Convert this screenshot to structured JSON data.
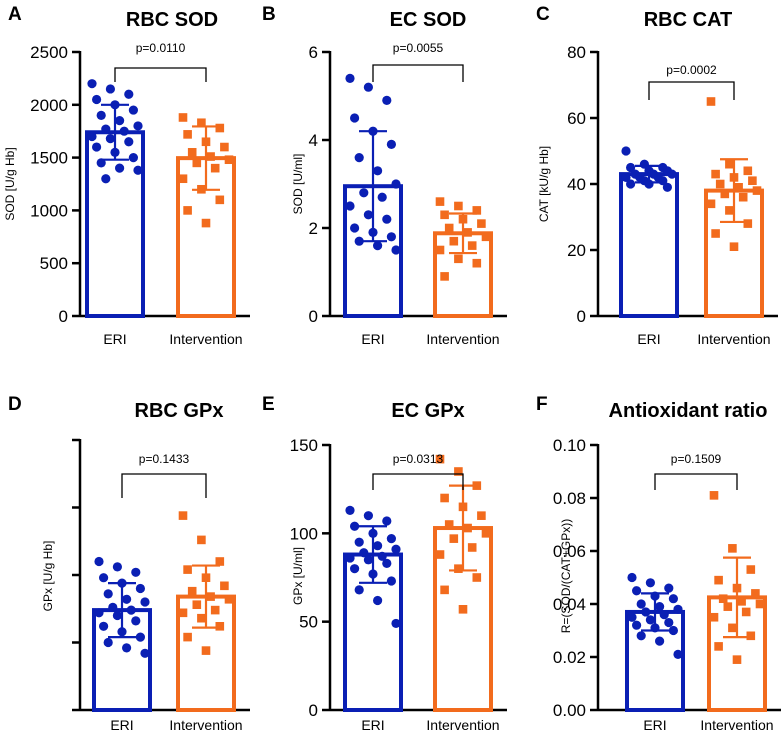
{
  "colors": {
    "eri": "#0a1fb4",
    "intervention": "#f26b1d",
    "axis": "#000000"
  },
  "chart_data": [
    {
      "panel": "A",
      "title": "RBC SOD",
      "type": "bar",
      "ylabel": "SOD [U/g Hb]",
      "ylim": [
        0,
        2500
      ],
      "yticks": [
        0,
        500,
        1000,
        1500,
        2000,
        2500
      ],
      "ytick_labels": true,
      "categories": [
        "ERI",
        "Intervention"
      ],
      "means": [
        1740,
        1495
      ],
      "sd": [
        260,
        300
      ],
      "points": [
        [
          2200,
          2150,
          2100,
          2050,
          2000,
          1950,
          1900,
          1850,
          1800,
          1770,
          1750,
          1700,
          1680,
          1650,
          1600,
          1550,
          1500,
          1450,
          1400,
          1380,
          1300
        ],
        [
          1880,
          1830,
          1780,
          1720,
          1650,
          1600,
          1550,
          1510,
          1480,
          1450,
          1400,
          1300,
          1200,
          1100,
          1000,
          880
        ]
      ],
      "p_value": "p=0.0110"
    },
    {
      "panel": "B",
      "title": "EC SOD",
      "type": "bar",
      "ylabel": "SOD [U/ml]",
      "ylim": [
        0,
        6
      ],
      "yticks": [
        0,
        2,
        4,
        6
      ],
      "ytick_labels": true,
      "categories": [
        "ERI",
        "Intervention"
      ],
      "means": [
        2.95,
        1.88
      ],
      "sd": [
        1.25,
        0.45
      ],
      "points": [
        [
          5.4,
          5.2,
          4.9,
          4.5,
          4.2,
          3.9,
          3.6,
          3.3,
          3.0,
          2.8,
          2.7,
          2.5,
          2.3,
          2.2,
          2.0,
          1.9,
          1.8,
          1.7,
          1.6,
          1.5
        ],
        [
          2.6,
          2.5,
          2.4,
          2.3,
          2.2,
          2.1,
          2.0,
          1.9,
          1.8,
          1.7,
          1.6,
          1.5,
          1.3,
          1.2,
          0.9
        ]
      ],
      "p_value": "p=0.0055"
    },
    {
      "panel": "C",
      "title": "RBC CAT",
      "type": "bar",
      "ylabel": "CAT [kU/g Hb]",
      "ylim": [
        0,
        80
      ],
      "yticks": [
        0,
        20,
        40,
        60,
        80
      ],
      "ytick_labels": true,
      "categories": [
        "ERI",
        "Intervention"
      ],
      "means": [
        43,
        38
      ],
      "sd": [
        2.5,
        9.5
      ],
      "points": [
        [
          50,
          46,
          45,
          45,
          44,
          44,
          43,
          43,
          43,
          42,
          42,
          42,
          41,
          41,
          40,
          40,
          39
        ],
        [
          65,
          46,
          44,
          43,
          42,
          41,
          40,
          39,
          38,
          37,
          36,
          34,
          32,
          28,
          25,
          21
        ]
      ],
      "p_value": "p=0.0002"
    },
    {
      "panel": "D",
      "title": "RBC GPx",
      "type": "bar",
      "ylabel": "GPx [U/g Hb]",
      "ylim": [
        0,
        100
      ],
      "yticks": [
        0,
        25,
        50,
        75,
        100
      ],
      "ytick_labels": false,
      "categories": [
        "ERI",
        "Intervention"
      ],
      "means": [
        37,
        42
      ],
      "sd": [
        10,
        11.5
      ],
      "points": [
        [
          55,
          53,
          51,
          49,
          47,
          45,
          43,
          41,
          40,
          38,
          37,
          36,
          35,
          33,
          31,
          29,
          27,
          25,
          23,
          21
        ],
        [
          72,
          63,
          55,
          52,
          49,
          46,
          44,
          42,
          41,
          39,
          37,
          36,
          34,
          31,
          27,
          22
        ]
      ],
      "p_value": "p=0.1433"
    },
    {
      "panel": "E",
      "title": "EC GPx",
      "type": "bar",
      "ylabel": "GPx [U/ml]",
      "ylim": [
        0,
        150
      ],
      "yticks": [
        0,
        50,
        100,
        150
      ],
      "ytick_labels": true,
      "categories": [
        "ERI",
        "Intervention"
      ],
      "means": [
        88,
        103
      ],
      "sd": [
        16,
        24
      ],
      "points": [
        [
          113,
          110,
          107,
          104,
          100,
          97,
          95,
          93,
          91,
          89,
          87,
          86,
          85,
          83,
          80,
          77,
          73,
          68,
          62,
          49
        ],
        [
          142,
          135,
          127,
          120,
          115,
          110,
          105,
          103,
          100,
          97,
          92,
          88,
          80,
          75,
          68,
          57
        ]
      ],
      "p_value": "p=0.0313"
    },
    {
      "panel": "F",
      "title": "Antioxidant ratio",
      "type": "bar",
      "ylabel": "R=(SOD/(CAT+GPx))",
      "ylim": [
        0,
        0.1
      ],
      "yticks": [
        0.0,
        0.02,
        0.04,
        0.06,
        0.08,
        0.1
      ],
      "ytick_labels": true,
      "categories": [
        "ERI",
        "Intervention"
      ],
      "means": [
        0.037,
        0.0425
      ],
      "sd": [
        0.007,
        0.015
      ],
      "points": [
        [
          0.05,
          0.048,
          0.046,
          0.045,
          0.043,
          0.042,
          0.04,
          0.039,
          0.038,
          0.037,
          0.036,
          0.035,
          0.034,
          0.033,
          0.032,
          0.031,
          0.03,
          0.028,
          0.026,
          0.021
        ],
        [
          0.081,
          0.061,
          0.053,
          0.049,
          0.046,
          0.044,
          0.042,
          0.041,
          0.04,
          0.039,
          0.037,
          0.035,
          0.031,
          0.028,
          0.024,
          0.019
        ]
      ],
      "p_value": "p=0.1509"
    }
  ]
}
